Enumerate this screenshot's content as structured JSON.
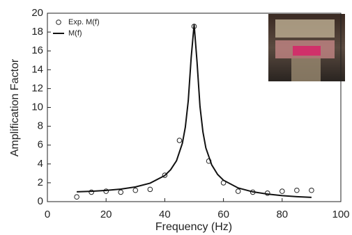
{
  "chart_data": {
    "type": "scatter",
    "xlabel": "Frequency (Hz)",
    "ylabel": "Amplification Factor",
    "xlim": [
      0,
      100
    ],
    "ylim": [
      0,
      20
    ],
    "xticks": [
      0,
      20,
      40,
      60,
      80,
      100
    ],
    "yticks": [
      0,
      2,
      4,
      6,
      8,
      10,
      12,
      14,
      16,
      18,
      20
    ],
    "legend": "upper left",
    "series": [
      {
        "name": "Exp. M(f)",
        "type": "scatter",
        "color": "#222222",
        "x": [
          10,
          15,
          20,
          25,
          30,
          35,
          40,
          45,
          50,
          55,
          60,
          65,
          70,
          75,
          80,
          85,
          90
        ],
        "values": [
          0.5,
          1.0,
          1.1,
          1.0,
          1.2,
          1.3,
          2.8,
          6.5,
          18.6,
          4.3,
          2.0,
          1.1,
          1.0,
          0.9,
          1.1,
          1.2,
          1.2
        ]
      },
      {
        "name": "M(f)",
        "type": "line",
        "color": "#111111",
        "x": [
          10,
          15,
          20,
          25,
          30,
          35,
          40,
          42,
          44,
          46,
          47,
          48,
          49,
          50,
          51,
          52,
          53,
          54,
          56,
          58,
          60,
          65,
          70,
          75,
          80,
          85,
          90
        ],
        "values": [
          1.04,
          1.1,
          1.19,
          1.33,
          1.56,
          1.96,
          2.77,
          3.39,
          4.34,
          6.2,
          7.9,
          10.7,
          15.3,
          18.8,
          14.8,
          10.1,
          7.4,
          5.7,
          3.9,
          2.89,
          2.27,
          1.45,
          1.04,
          0.8,
          0.64,
          0.53,
          0.45
        ]
      }
    ]
  }
}
